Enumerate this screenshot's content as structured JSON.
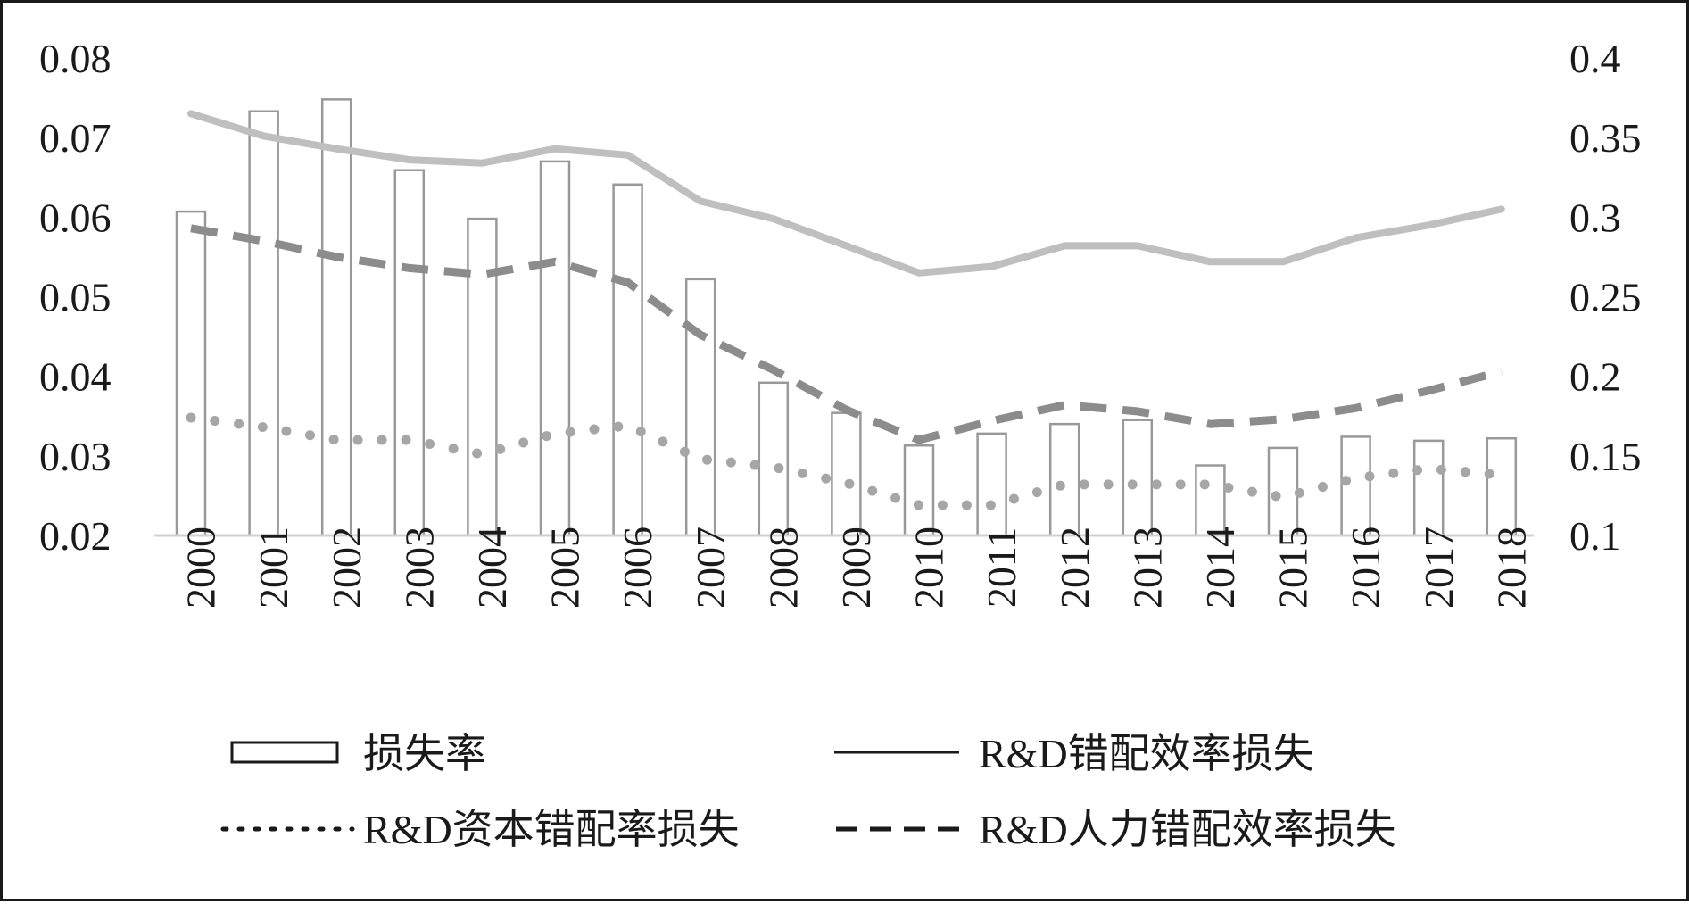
{
  "chart_data": {
    "type": "bar",
    "categories": [
      "2000",
      "2001",
      "2002",
      "2003",
      "2004",
      "2005",
      "2006",
      "2007",
      "2008",
      "2009",
      "2010",
      "2011",
      "2012",
      "2013",
      "2014",
      "2015",
      "2016",
      "2017",
      "2018"
    ],
    "left_axis": {
      "ylim": [
        0.02,
        0.08
      ],
      "ticks": [
        "0.08",
        "0.07",
        "0.06",
        "0.05",
        "0.04",
        "0.03",
        "0.02"
      ]
    },
    "right_axis": {
      "ylim": [
        0.1,
        0.4
      ],
      "ticks": [
        "0.4",
        "0.35",
        "0.3",
        "0.25",
        "0.2",
        "0.15",
        "0.1"
      ]
    },
    "series": [
      {
        "name": "损失率",
        "type": "bar",
        "axis": "left",
        "color": "#999999",
        "values": [
          0.0607,
          0.0733,
          0.0748,
          0.0659,
          0.0598,
          0.067,
          0.0641,
          0.0522,
          0.0392,
          0.0354,
          0.0313,
          0.0328,
          0.034,
          0.0345,
          0.0288,
          0.031,
          0.0324,
          0.0319,
          0.0322
        ]
      },
      {
        "name": "R&D错配效率损失",
        "type": "line",
        "style": "solid",
        "axis": "right",
        "color": "#bfbfbf",
        "values": [
          0.365,
          0.351,
          0.343,
          0.336,
          0.334,
          0.343,
          0.339,
          0.31,
          0.299,
          0.282,
          0.265,
          0.269,
          0.282,
          0.282,
          0.272,
          0.272,
          0.287,
          0.295,
          0.305
        ]
      },
      {
        "name": "R&D资本错配率损失",
        "type": "line",
        "style": "dotted",
        "axis": "right",
        "color": "#a6a6a6",
        "values": [
          0.174,
          0.168,
          0.16,
          0.16,
          0.151,
          0.164,
          0.169,
          0.148,
          0.143,
          0.133,
          0.119,
          0.119,
          0.132,
          0.132,
          0.132,
          0.124,
          0.136,
          0.142,
          0.138
        ]
      },
      {
        "name": "R&D人力错配效率损失",
        "type": "line",
        "style": "dashed",
        "axis": "right",
        "color": "#8c8c8c",
        "values": [
          0.293,
          0.285,
          0.275,
          0.268,
          0.264,
          0.272,
          0.259,
          0.226,
          0.204,
          0.179,
          0.16,
          0.172,
          0.182,
          0.178,
          0.17,
          0.173,
          0.18,
          0.191,
          0.203
        ]
      }
    ],
    "legend": {
      "position": "bottom",
      "items": [
        {
          "label": "损失率",
          "symbol": "bar"
        },
        {
          "label": "R&D错配效率损失",
          "symbol": "solid"
        },
        {
          "label": "R&D资本错配率损失",
          "symbol": "dotted"
        },
        {
          "label": "R&D人力错配效率损失",
          "symbol": "dashed"
        }
      ]
    },
    "grid": false
  }
}
